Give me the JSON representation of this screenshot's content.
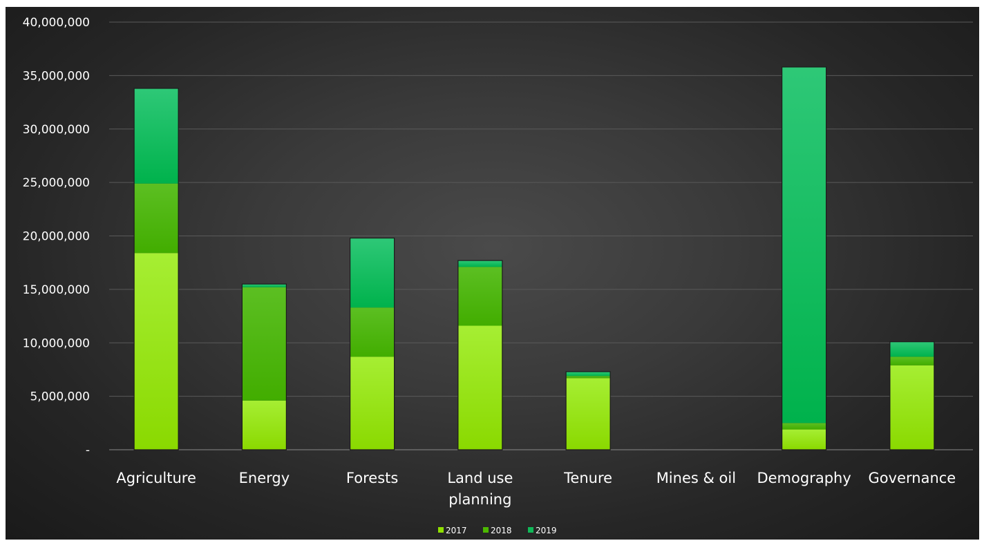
{
  "chart_data": {
    "type": "bar",
    "stacked": true,
    "title": "",
    "xlabel": "",
    "ylabel": "",
    "ylim": [
      0,
      40000000
    ],
    "ytick_step": 5000000,
    "ytick_labels": [
      "-",
      "5,000,000",
      "10,000,000",
      "15,000,000",
      "20,000,000",
      "25,000,000",
      "30,000,000",
      "35,000,000",
      "40,000,000"
    ],
    "grid": true,
    "legend_position": "bottom",
    "categories": [
      [
        "Agriculture"
      ],
      [
        "Energy"
      ],
      [
        "Forests"
      ],
      [
        "Land use",
        "planning"
      ],
      [
        "Tenure"
      ],
      [
        "Mines & oil"
      ],
      [
        "Demography"
      ],
      [
        "Governance"
      ]
    ],
    "series": [
      {
        "name": "2017",
        "color": "#8fe000",
        "values": [
          18400000,
          4600000,
          8700000,
          11600000,
          6700000,
          0,
          1900000,
          7900000
        ]
      },
      {
        "name": "2018",
        "color": "#4cb800",
        "values": [
          6500000,
          10600000,
          4600000,
          5500000,
          200000,
          0,
          600000,
          800000
        ]
      },
      {
        "name": "2019",
        "color": "#10b858",
        "values": [
          8900000,
          300000,
          6500000,
          600000,
          400000,
          0,
          33300000,
          1400000
        ]
      }
    ]
  },
  "colors": {
    "background": "#2e2e2e",
    "gridline": "#5a5a5a",
    "text": "#ffffff"
  }
}
